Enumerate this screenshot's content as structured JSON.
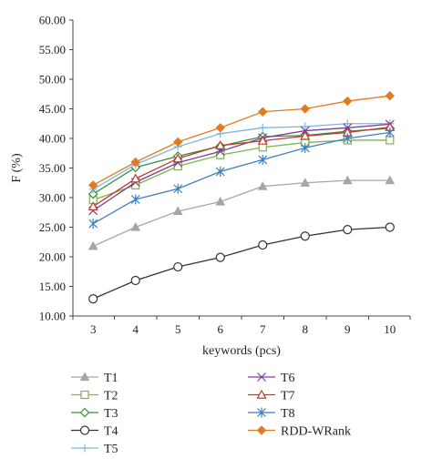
{
  "chart_data": {
    "type": "line",
    "title": "",
    "xlabel": "keywords (pcs)",
    "ylabel": "F (%)",
    "x": [
      3,
      4,
      5,
      6,
      7,
      8,
      9,
      10
    ],
    "xticks": [
      "3",
      "4",
      "5",
      "6",
      "7",
      "8",
      "9",
      "10"
    ],
    "ylim": [
      10,
      60
    ],
    "yticks": [
      "10.00",
      "15.00",
      "20.00",
      "25.00",
      "30.00",
      "35.00",
      "40.00",
      "45.00",
      "50.00",
      "55.00",
      "60.00"
    ],
    "grid": false,
    "legend_position": "bottom",
    "series": [
      {
        "name": "T1",
        "color": "#a6a6a6",
        "marker": "triangle-filled",
        "values": [
          21.8,
          25.0,
          27.7,
          29.3,
          31.9,
          32.5,
          32.9,
          32.9
        ]
      },
      {
        "name": "T2",
        "color": "#7ab648",
        "marker": "square-open",
        "values": [
          29.6,
          32.1,
          35.3,
          37.2,
          38.5,
          39.3,
          39.7,
          39.7
        ]
      },
      {
        "name": "T3",
        "color": "#3a8f3a",
        "marker": "diamond-open",
        "values": [
          30.6,
          35.1,
          37.0,
          38.7,
          40.3,
          40.5,
          41.2,
          41.7
        ]
      },
      {
        "name": "T4",
        "color": "#333333",
        "marker": "circle-open",
        "values": [
          12.9,
          16.0,
          18.3,
          19.9,
          22.0,
          23.5,
          24.6,
          25.0
        ]
      },
      {
        "name": "T5",
        "color": "#7eb6e6",
        "marker": "plus",
        "values": [
          31.4,
          35.6,
          38.6,
          40.8,
          41.8,
          42.0,
          42.5,
          42.5
        ]
      },
      {
        "name": "T6",
        "color": "#7a3f98",
        "marker": "x",
        "values": [
          27.8,
          32.6,
          35.9,
          37.8,
          40.1,
          41.3,
          41.8,
          42.4
        ]
      },
      {
        "name": "T7",
        "color": "#c0392b",
        "marker": "triangle-open",
        "values": [
          28.5,
          33.2,
          36.6,
          38.8,
          39.6,
          40.4,
          41.0,
          41.9
        ]
      },
      {
        "name": "T8",
        "color": "#3f7fc1",
        "marker": "asterisk",
        "values": [
          25.6,
          29.7,
          31.5,
          34.4,
          36.4,
          38.4,
          40.0,
          41.0
        ]
      },
      {
        "name": "RDD-WRank",
        "color": "#e07b24",
        "marker": "diamond-filled",
        "values": [
          32.1,
          36.0,
          39.4,
          41.8,
          44.5,
          45.0,
          46.3,
          47.2
        ]
      }
    ]
  }
}
